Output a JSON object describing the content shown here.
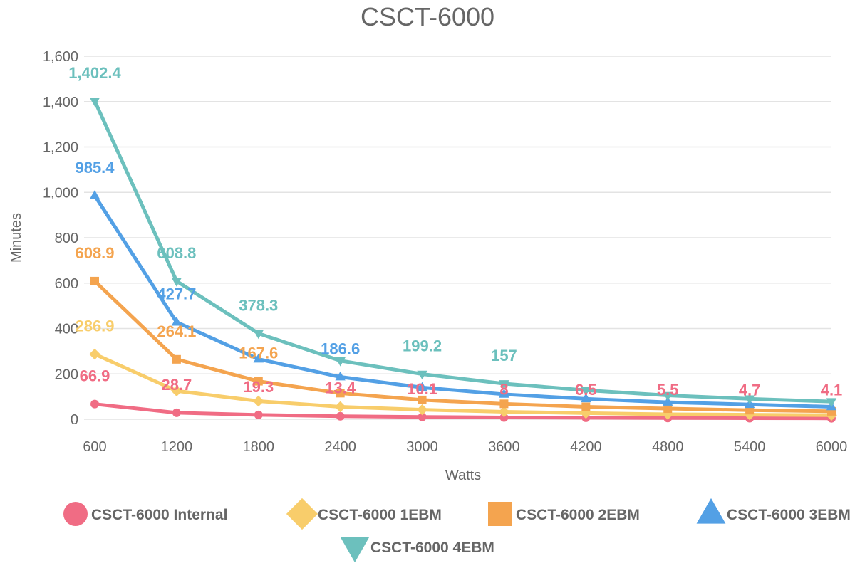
{
  "chart_data": {
    "type": "line",
    "title": "CSCT-6000",
    "xlabel": "Watts",
    "ylabel": "Minutes",
    "x": [
      "600",
      "1200",
      "1800",
      "2400",
      "3000",
      "3600",
      "4200",
      "4800",
      "5400",
      "6000"
    ],
    "ylim": [
      0,
      1600
    ],
    "yticks": [
      0,
      200,
      400,
      600,
      800,
      1000,
      1200,
      1400,
      1600
    ],
    "ytick_labels": [
      "0",
      "200",
      "400",
      "600",
      "800",
      "1,000",
      "1,200",
      "1,400",
      "1,600"
    ],
    "grid": true,
    "legend_position": "bottom",
    "series": [
      {
        "name": "CSCT-6000 Internal",
        "color": "#f06c84",
        "marker": "circle",
        "values": [
          66.9,
          28.7,
          19.3,
          13.4,
          10.1,
          8,
          6.5,
          5.5,
          4.7,
          4.1
        ],
        "labels": [
          "66.9",
          "28.7",
          "19.3",
          "13.4",
          "10.1",
          "8",
          "6.5",
          "5.5",
          "4.7",
          "4.1"
        ]
      },
      {
        "name": "CSCT-6000 1EBM",
        "color": "#f8cd6b",
        "marker": "diamond",
        "values": [
          286.9,
          125,
          80,
          55,
          42,
          33,
          27,
          22,
          20,
          18
        ],
        "labels": [
          "286.9",
          null,
          null,
          null,
          null,
          null,
          null,
          null,
          null,
          null
        ]
      },
      {
        "name": "CSCT-6000 2EBM",
        "color": "#f4a44f",
        "marker": "square",
        "values": [
          608.9,
          264.1,
          167.6,
          115,
          85,
          68,
          55,
          47,
          40,
          35
        ],
        "labels": [
          "608.9",
          "264.1",
          "167.6",
          null,
          null,
          null,
          null,
          null,
          null,
          null
        ]
      },
      {
        "name": "CSCT-6000 3EBM",
        "color": "#53a0e5",
        "marker": "triangle",
        "values": [
          985.4,
          427.7,
          265,
          186.6,
          140,
          110,
          90,
          75,
          65,
          55
        ],
        "labels": [
          "985.4",
          "427.7",
          null,
          "186.6",
          null,
          null,
          null,
          null,
          null,
          null
        ]
      },
      {
        "name": "CSCT-6000 4EBM",
        "color": "#6cc0bd",
        "marker": "triangle-down",
        "values": [
          1402.4,
          608.8,
          378.3,
          258,
          199.2,
          157,
          128,
          105,
          90,
          78
        ],
        "labels": [
          "1,402.4",
          "608.8",
          "378.3",
          null,
          "199.2",
          "157",
          null,
          null,
          null,
          null
        ]
      }
    ]
  }
}
